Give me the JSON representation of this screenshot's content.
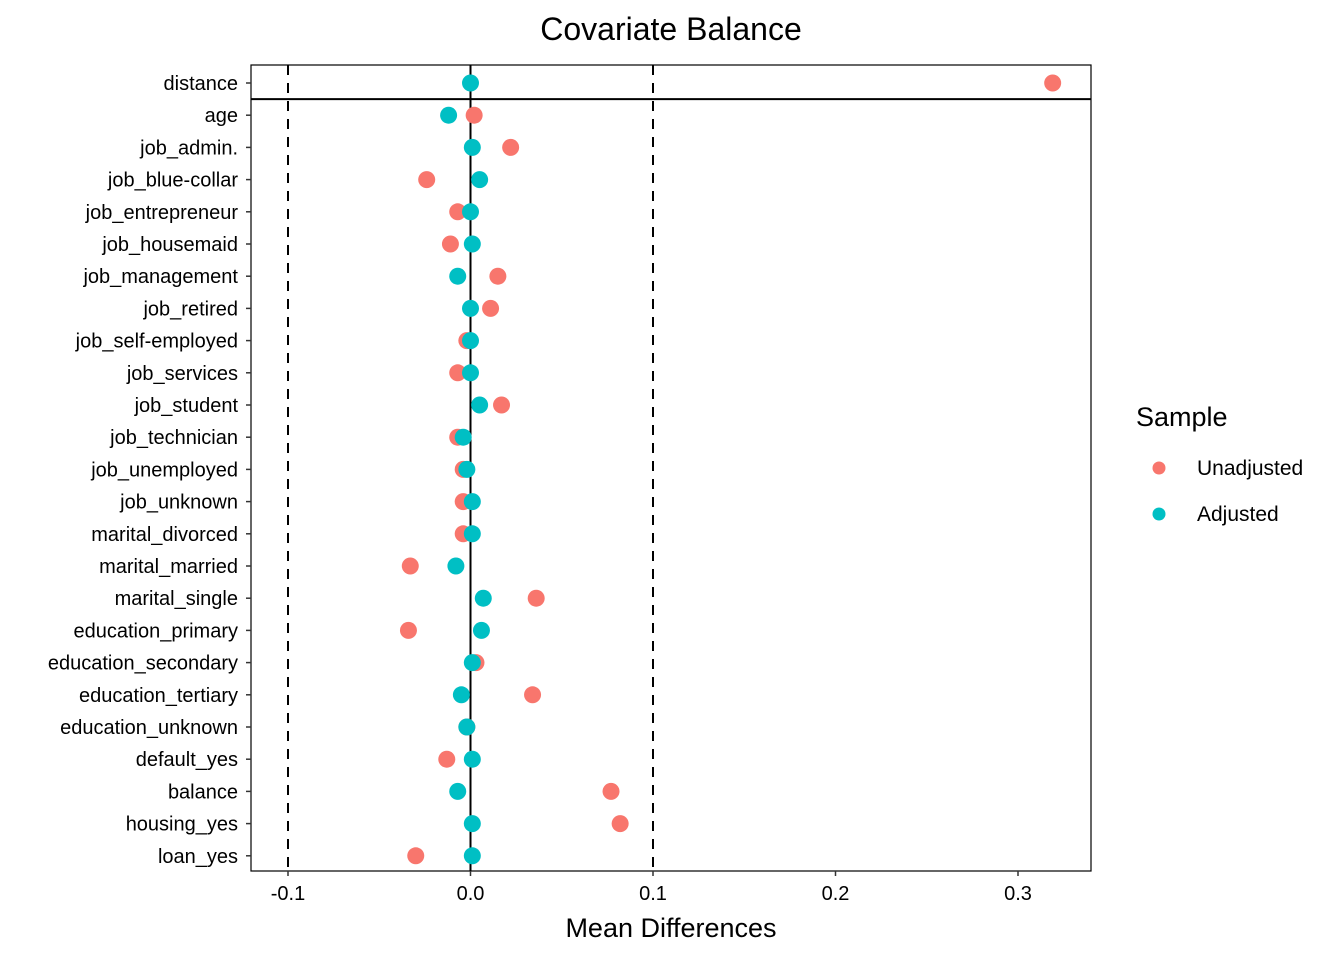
{
  "chart_data": {
    "type": "scatter",
    "title": "Covariate Balance",
    "xlabel": "Mean Differences",
    "ylabel": "",
    "xlim": [
      -0.12,
      0.34
    ],
    "xticks": [
      -0.1,
      0.0,
      0.1,
      0.2,
      0.3
    ],
    "xtick_labels": [
      "-0.1",
      "0.0",
      "0.1",
      "0.2",
      "0.3"
    ],
    "threshold_lines": [
      -0.1,
      0.1
    ],
    "zero_line": 0.0,
    "grid": false,
    "legend": {
      "title": "Sample",
      "placement": "right",
      "entries": [
        {
          "name": "Unadjusted",
          "color": "#F8766D"
        },
        {
          "name": "Adjusted",
          "color": "#00BFC4"
        }
      ]
    },
    "categories": [
      "distance",
      "age",
      "job_admin.",
      "job_blue-collar",
      "job_entrepreneur",
      "job_housemaid",
      "job_management",
      "job_retired",
      "job_self-employed",
      "job_services",
      "job_student",
      "job_technician",
      "job_unemployed",
      "job_unknown",
      "marital_divorced",
      "marital_married",
      "marital_single",
      "education_primary",
      "education_secondary",
      "education_tertiary",
      "education_unknown",
      "default_yes",
      "balance",
      "housing_yes",
      "loan_yes"
    ],
    "series": [
      {
        "name": "Unadjusted",
        "color": "#F8766D",
        "values": [
          0.319,
          0.002,
          0.022,
          -0.024,
          -0.007,
          -0.011,
          0.015,
          0.011,
          -0.002,
          -0.007,
          0.017,
          -0.007,
          -0.004,
          -0.004,
          -0.004,
          -0.033,
          0.036,
          -0.034,
          0.003,
          0.034,
          -0.002,
          -0.013,
          0.077,
          0.082,
          -0.03
        ]
      },
      {
        "name": "Adjusted",
        "color": "#00BFC4",
        "values": [
          0.0,
          -0.012,
          0.001,
          0.005,
          0.0,
          0.001,
          -0.007,
          0.0,
          0.0,
          0.0,
          0.005,
          -0.004,
          -0.002,
          0.001,
          0.001,
          -0.008,
          0.007,
          0.006,
          0.001,
          -0.005,
          -0.002,
          0.001,
          -0.007,
          0.001,
          0.001
        ]
      }
    ]
  }
}
